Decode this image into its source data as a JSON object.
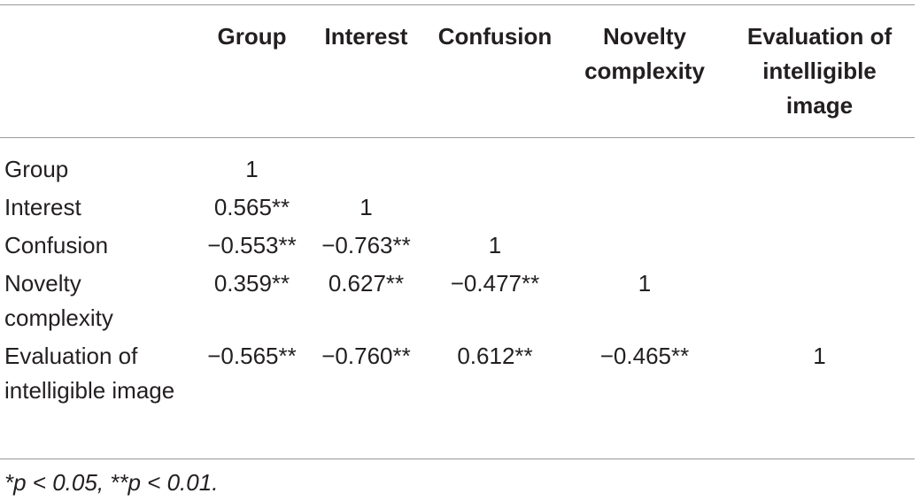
{
  "table": {
    "headers": [
      "Group",
      "Interest",
      "Confusion",
      "Novelty complexity",
      "Evaluation of intelligible image"
    ],
    "rows": [
      {
        "label": "Group",
        "cells": [
          "1"
        ]
      },
      {
        "label": "Interest",
        "cells": [
          "0.565**",
          "1"
        ]
      },
      {
        "label": "Confusion",
        "cells": [
          "−0.553**",
          "−0.763**",
          "1"
        ]
      },
      {
        "label": "Novelty complexity",
        "cells": [
          "0.359**",
          "0.627**",
          "−0.477**",
          "1"
        ]
      },
      {
        "label": "Evaluation of intelligible image",
        "cells": [
          "−0.565**",
          "−0.760**",
          "0.612**",
          "−0.465**",
          "1"
        ]
      }
    ]
  },
  "footnote": "*p < 0.05, **p < 0.01."
}
